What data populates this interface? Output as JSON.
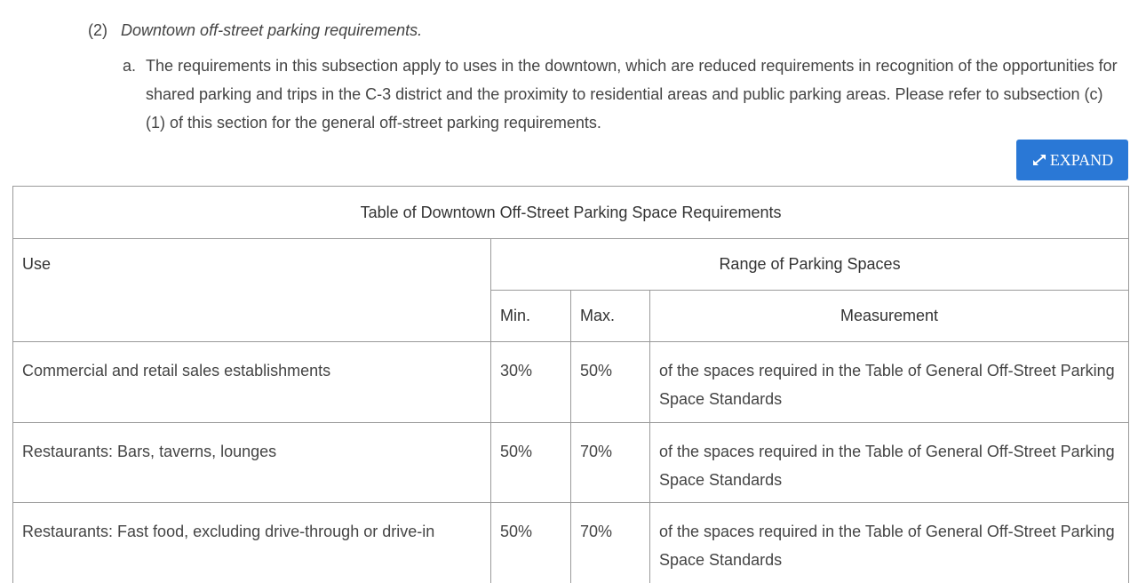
{
  "subsection": {
    "number": "(2)",
    "title": "Downtown off-street parking requirements."
  },
  "paragraph": {
    "marker": "a.",
    "text": "The requirements in this subsection apply to uses in the downtown, which are reduced requirements in recognition of the opportunities for shared parking and trips in the C-3 district and the proximity to residential areas and public parking areas. Please refer to subsection (c)(1) of this section for the general off-street parking requirements."
  },
  "expand_button": {
    "label": "EXPAND",
    "icon": "expand-arrows-icon",
    "color": "#2a78d6"
  },
  "table": {
    "caption": "Table of Downtown Off-Street Parking Space Requirements",
    "headers": {
      "use": "Use",
      "range": "Range of Parking Spaces",
      "min": "Min.",
      "max": "Max.",
      "measurement": "Measurement"
    },
    "rows": [
      {
        "use": "Commercial and retail sales establishments",
        "min": "30%",
        "max": "50%",
        "measurement": "of the spaces required in the Table of General Off-Street Parking Space Standards"
      },
      {
        "use": "Restaurants: Bars, taverns, lounges",
        "min": "50%",
        "max": "70%",
        "measurement": "of the spaces required in the Table of General Off-Street Parking Space Standards"
      },
      {
        "use": "Restaurants: Fast food, excluding drive-through or drive-in",
        "min": "50%",
        "max": "70%",
        "measurement": "of the spaces required in the Table of General Off-Street Parking Space Standards"
      }
    ]
  }
}
